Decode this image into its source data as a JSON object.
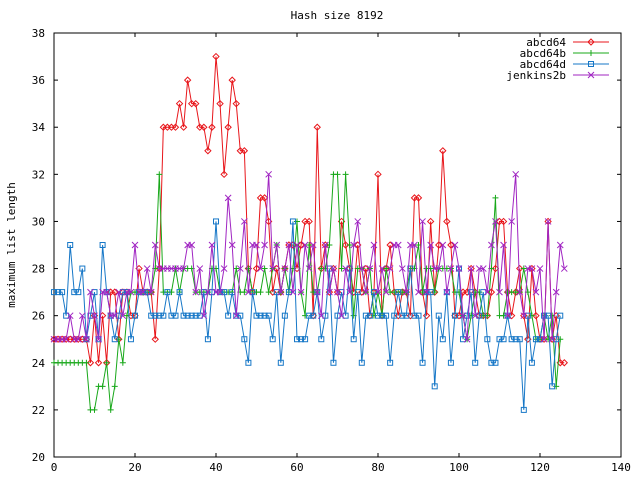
{
  "chart_data": {
    "type": "line",
    "title": "Hash size 8192",
    "xlabel": "",
    "ylabel": "maximum list length",
    "xlim": [
      0,
      140
    ],
    "ylim": [
      20,
      38
    ],
    "xticks": [
      0,
      20,
      40,
      60,
      80,
      100,
      120,
      140
    ],
    "yticks": [
      20,
      22,
      24,
      26,
      28,
      30,
      32,
      34,
      36,
      38
    ],
    "grid": false,
    "legend_position": "top-right",
    "x_start": 0,
    "x_step": 1,
    "series": [
      {
        "name": "abcd64",
        "color": "#e8161b",
        "marker": "diamond",
        "values": [
          25,
          25,
          25,
          25,
          25,
          25,
          25,
          25,
          25,
          24,
          26,
          24,
          26,
          24,
          27,
          27,
          25,
          27,
          27,
          26,
          26,
          28,
          27,
          27,
          27,
          25,
          28,
          34,
          34,
          34,
          34,
          35,
          34,
          36,
          35,
          35,
          34,
          34,
          33,
          34,
          37,
          35,
          32,
          34,
          36,
          35,
          33,
          33,
          28,
          27,
          28,
          31,
          31,
          30,
          27,
          28,
          27,
          28,
          29,
          29,
          28,
          29,
          30,
          30,
          26,
          34,
          28,
          29,
          27,
          28,
          27,
          30,
          29,
          28,
          27,
          29,
          27,
          28,
          26,
          27,
          32,
          26,
          28,
          29,
          27,
          26,
          27,
          27,
          26,
          31,
          31,
          27,
          26,
          30,
          27,
          29,
          33,
          30,
          29,
          26,
          26,
          27,
          27,
          28,
          27,
          26,
          26,
          26,
          27,
          28,
          30,
          30,
          27,
          26,
          27,
          28,
          26,
          25,
          28,
          26,
          25,
          25,
          30,
          25,
          26,
          24,
          24
        ]
      },
      {
        "name": "abcd64b",
        "color": "#18a81a",
        "marker": "plus",
        "values": [
          24,
          24,
          24,
          24,
          24,
          24,
          24,
          24,
          24,
          22,
          22,
          23,
          23,
          24,
          22,
          23,
          25,
          24,
          26,
          27,
          27,
          27,
          27,
          27,
          27,
          28,
          32,
          27,
          27,
          27,
          28,
          27,
          28,
          28,
          28,
          27,
          27,
          27,
          27,
          28,
          28,
          27,
          27,
          27,
          27,
          28,
          27,
          27,
          28,
          27,
          27,
          27,
          28,
          27,
          28,
          29,
          27,
          28,
          27,
          28,
          30,
          27,
          26,
          29,
          27,
          27,
          28,
          28,
          29,
          32,
          32,
          28,
          32,
          29,
          26,
          28,
          28,
          27,
          28,
          26,
          27,
          26,
          28,
          27,
          27,
          27,
          27,
          27,
          28,
          28,
          29,
          27,
          28,
          28,
          27,
          28,
          28,
          28,
          28,
          27,
          27,
          26,
          25,
          26,
          27,
          27,
          26,
          26,
          28,
          31,
          26,
          26,
          27,
          27,
          27,
          27,
          28,
          27,
          26,
          25,
          25,
          26,
          25,
          26,
          23,
          25
        ]
      },
      {
        "name": "abcd64d",
        "color": "#1677c7",
        "marker": "square",
        "values": [
          27,
          27,
          27,
          26,
          29,
          27,
          27,
          28,
          25,
          26,
          27,
          25,
          29,
          27,
          26,
          25,
          26,
          27,
          27,
          25,
          26,
          27,
          27,
          27,
          26,
          26,
          26,
          26,
          27,
          26,
          26,
          27,
          26,
          26,
          26,
          26,
          26,
          27,
          25,
          27,
          30,
          27,
          27,
          26,
          27,
          26,
          26,
          25,
          24,
          27,
          26,
          26,
          26,
          26,
          25,
          27,
          24,
          26,
          27,
          30,
          25,
          25,
          25,
          26,
          26,
          27,
          25,
          26,
          28,
          24,
          26,
          27,
          26,
          28,
          25,
          27,
          24,
          26,
          26,
          27,
          26,
          26,
          26,
          24,
          26,
          27,
          26,
          26,
          28,
          26,
          26,
          24,
          27,
          27,
          23,
          26,
          25,
          27,
          24,
          26,
          28,
          25,
          26,
          27,
          24,
          26,
          27,
          25,
          24,
          24,
          25,
          25,
          26,
          25,
          25,
          25,
          22,
          26,
          24,
          25,
          25,
          26,
          26,
          23,
          25,
          26
        ]
      },
      {
        "name": "jenkins2b",
        "color": "#a025c2",
        "marker": "cross",
        "values": [
          25,
          25,
          25,
          25,
          26,
          25,
          25,
          26,
          25,
          27,
          26,
          25,
          27,
          27,
          26,
          26,
          27,
          26,
          27,
          27,
          29,
          27,
          27,
          28,
          27,
          29,
          28,
          28,
          28,
          28,
          28,
          28,
          28,
          29,
          29,
          27,
          28,
          26,
          27,
          29,
          27,
          27,
          28,
          31,
          29,
          26,
          28,
          30,
          27,
          29,
          29,
          28,
          29,
          32,
          28,
          29,
          27,
          28,
          29,
          27,
          29,
          27,
          29,
          28,
          29,
          27,
          26,
          29,
          27,
          28,
          27,
          26,
          28,
          27,
          29,
          30,
          28,
          27,
          28,
          29,
          27,
          28,
          27,
          28,
          29,
          29,
          28,
          27,
          29,
          29,
          27,
          30,
          27,
          29,
          28,
          28,
          29,
          27,
          28,
          29,
          28,
          26,
          25,
          28,
          26,
          28,
          28,
          27,
          29,
          30,
          27,
          29,
          26,
          30,
          32,
          27,
          26,
          28,
          28,
          27,
          28,
          25,
          30,
          25,
          27,
          29,
          28
        ]
      }
    ]
  }
}
